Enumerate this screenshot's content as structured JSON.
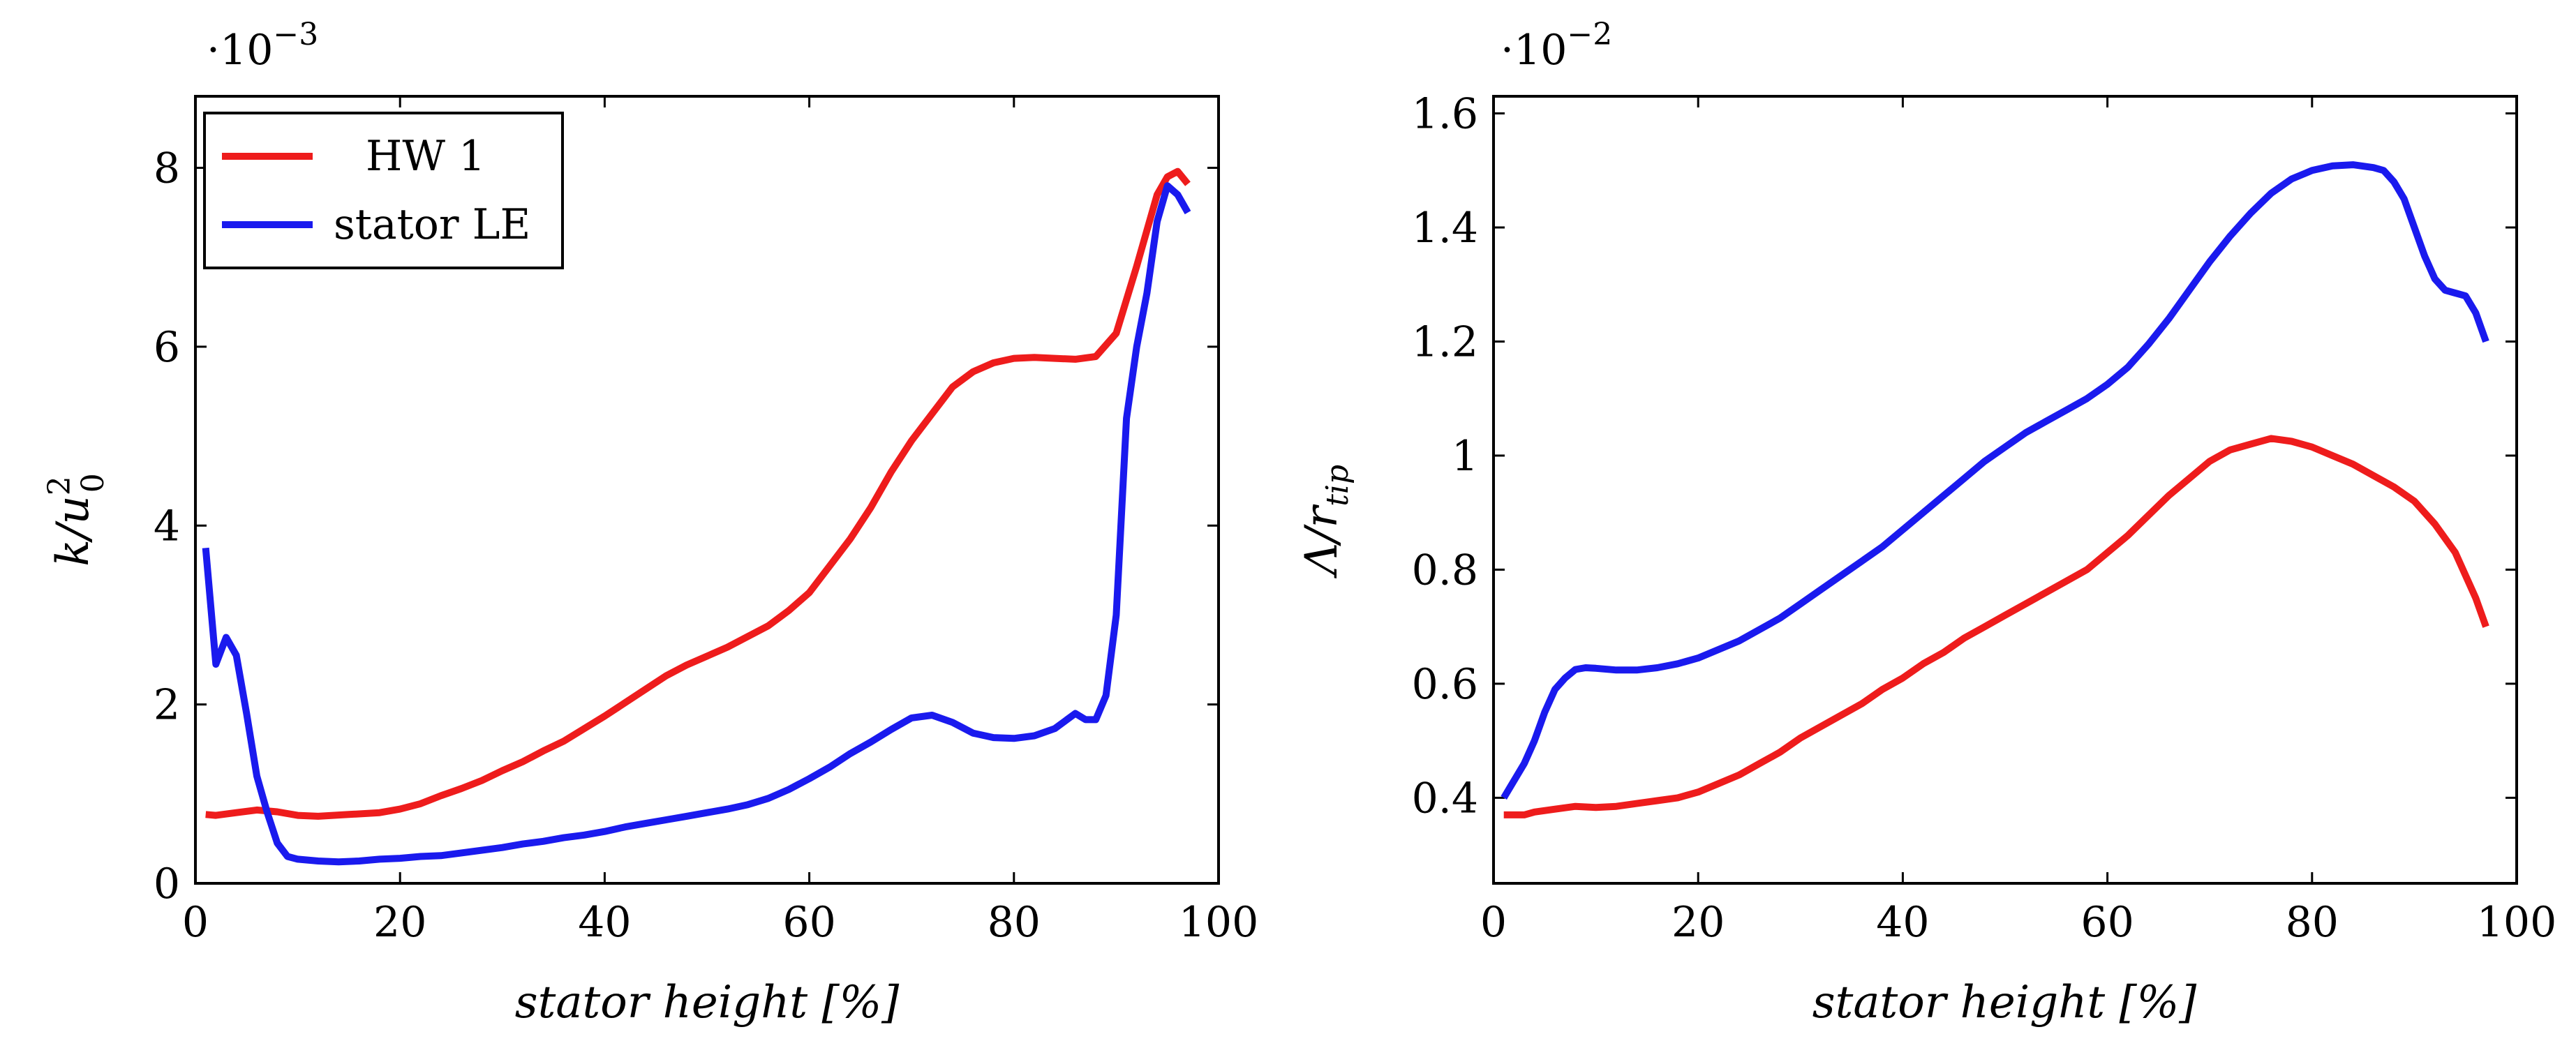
{
  "colors": {
    "hw1": "#ee1c1c",
    "stator_le": "#1a1aee",
    "axes": "#000000"
  },
  "chart_data": [
    {
      "type": "line",
      "title": "",
      "xlabel": "stator height [%]",
      "ylabel": "k/u_0^2",
      "ylabel_main": "k/u",
      "ylabel_sub": "0",
      "ylabel_sup": "2",
      "ylabel_suffix": "",
      "scale_base": "·10",
      "scale_exp": "−3",
      "xlim": [
        0,
        100
      ],
      "ylim": [
        0,
        8.8
      ],
      "xticks": [
        0,
        20,
        40,
        60,
        80,
        100
      ],
      "xtick_labels": [
        "0",
        "20",
        "40",
        "60",
        "80",
        "100"
      ],
      "yticks": [
        0,
        2,
        4,
        6,
        8
      ],
      "ytick_labels": [
        "0",
        "2",
        "4",
        "6",
        "8"
      ],
      "legend": {
        "placement": "top-left",
        "entries": [
          "HW 1",
          "stator LE"
        ]
      },
      "series": [
        {
          "name": "HW 1",
          "color": "#ee1c1c",
          "x": [
            1,
            2,
            4,
            6,
            8,
            10,
            12,
            15,
            18,
            20,
            22,
            24,
            26,
            28,
            30,
            32,
            34,
            36,
            38,
            40,
            42,
            44,
            46,
            48,
            50,
            52,
            54,
            56,
            58,
            60,
            62,
            64,
            66,
            68,
            70,
            72,
            74,
            76,
            78,
            80,
            82,
            84,
            86,
            88,
            90,
            92,
            94,
            95,
            96,
            97
          ],
          "values": [
            0.77,
            0.76,
            0.79,
            0.82,
            0.8,
            0.76,
            0.75,
            0.77,
            0.79,
            0.83,
            0.89,
            0.98,
            1.06,
            1.15,
            1.26,
            1.36,
            1.48,
            1.59,
            1.73,
            1.87,
            2.02,
            2.17,
            2.32,
            2.44,
            2.54,
            2.64,
            2.76,
            2.88,
            3.05,
            3.25,
            3.55,
            3.85,
            4.2,
            4.6,
            4.95,
            5.25,
            5.55,
            5.72,
            5.82,
            5.87,
            5.88,
            5.87,
            5.86,
            5.89,
            6.15,
            6.9,
            7.7,
            7.9,
            7.96,
            7.82
          ]
        },
        {
          "name": "stator LE",
          "color": "#1a1aee",
          "x": [
            1,
            2,
            3,
            4,
            5,
            6,
            7,
            8,
            9,
            10,
            12,
            14,
            16,
            18,
            20,
            22,
            24,
            26,
            28,
            30,
            32,
            34,
            36,
            38,
            40,
            42,
            44,
            46,
            48,
            50,
            52,
            54,
            56,
            58,
            60,
            62,
            64,
            66,
            68,
            70,
            72,
            74,
            76,
            78,
            80,
            82,
            84,
            86,
            87,
            88,
            89,
            90,
            91,
            92,
            93,
            94,
            95,
            96,
            97
          ],
          "values": [
            3.75,
            2.45,
            2.75,
            2.55,
            1.9,
            1.2,
            0.8,
            0.45,
            0.3,
            0.27,
            0.25,
            0.24,
            0.25,
            0.27,
            0.28,
            0.3,
            0.31,
            0.34,
            0.37,
            0.4,
            0.44,
            0.47,
            0.51,
            0.54,
            0.58,
            0.63,
            0.67,
            0.71,
            0.75,
            0.79,
            0.83,
            0.88,
            0.95,
            1.05,
            1.17,
            1.3,
            1.45,
            1.58,
            1.72,
            1.85,
            1.88,
            1.8,
            1.68,
            1.63,
            1.62,
            1.65,
            1.73,
            1.9,
            1.83,
            1.83,
            2.1,
            3.0,
            5.2,
            6.0,
            6.6,
            7.4,
            7.8,
            7.7,
            7.5
          ]
        }
      ]
    },
    {
      "type": "line",
      "title": "",
      "xlabel": "stator height [%]",
      "ylabel": "Λ/r_tip",
      "ylabel_main": "Λ/r",
      "ylabel_sub": "tip",
      "ylabel_sup": "",
      "ylabel_suffix": "",
      "scale_base": "·10",
      "scale_exp": "−2",
      "xlim": [
        0,
        100
      ],
      "ylim": [
        0.25,
        1.63
      ],
      "xticks": [
        0,
        20,
        40,
        60,
        80,
        100
      ],
      "xtick_labels": [
        "0",
        "20",
        "40",
        "60",
        "80",
        "100"
      ],
      "yticks": [
        0.4,
        0.6,
        0.8,
        1.0,
        1.2,
        1.4,
        1.6
      ],
      "ytick_labels": [
        "0.4",
        "0.6",
        "0.8",
        "1",
        "1.2",
        "1.4",
        "1.6"
      ],
      "legend": {
        "placement": "none",
        "entries": []
      },
      "series": [
        {
          "name": "HW 1",
          "color": "#ee1c1c",
          "x": [
            1,
            2,
            3,
            4,
            6,
            8,
            10,
            12,
            14,
            16,
            18,
            20,
            22,
            24,
            26,
            28,
            30,
            32,
            34,
            36,
            38,
            40,
            42,
            44,
            46,
            48,
            50,
            52,
            54,
            56,
            58,
            60,
            62,
            64,
            66,
            68,
            70,
            72,
            74,
            76,
            78,
            80,
            82,
            84,
            86,
            88,
            90,
            92,
            94,
            96,
            97
          ],
          "values": [
            0.37,
            0.37,
            0.37,
            0.375,
            0.38,
            0.385,
            0.383,
            0.385,
            0.39,
            0.395,
            0.4,
            0.41,
            0.425,
            0.44,
            0.46,
            0.48,
            0.505,
            0.525,
            0.545,
            0.565,
            0.59,
            0.61,
            0.635,
            0.655,
            0.68,
            0.7,
            0.72,
            0.74,
            0.76,
            0.78,
            0.8,
            0.83,
            0.86,
            0.895,
            0.93,
            0.96,
            0.99,
            1.01,
            1.02,
            1.03,
            1.025,
            1.015,
            1.0,
            0.985,
            0.965,
            0.945,
            0.92,
            0.88,
            0.83,
            0.75,
            0.7
          ]
        },
        {
          "name": "stator LE",
          "color": "#1a1aee",
          "x": [
            1,
            2,
            3,
            4,
            5,
            6,
            7,
            8,
            9,
            10,
            12,
            14,
            16,
            18,
            20,
            22,
            24,
            26,
            28,
            30,
            32,
            34,
            36,
            38,
            40,
            42,
            44,
            46,
            48,
            50,
            52,
            54,
            56,
            58,
            60,
            62,
            64,
            66,
            68,
            70,
            72,
            74,
            76,
            78,
            80,
            82,
            84,
            86,
            87,
            88,
            89,
            90,
            91,
            92,
            93,
            94,
            95,
            96,
            97
          ],
          "values": [
            0.4,
            0.43,
            0.46,
            0.5,
            0.55,
            0.59,
            0.61,
            0.625,
            0.628,
            0.627,
            0.624,
            0.624,
            0.628,
            0.635,
            0.645,
            0.66,
            0.675,
            0.695,
            0.715,
            0.74,
            0.765,
            0.79,
            0.815,
            0.84,
            0.87,
            0.9,
            0.93,
            0.96,
            0.99,
            1.015,
            1.04,
            1.06,
            1.08,
            1.1,
            1.125,
            1.155,
            1.195,
            1.24,
            1.29,
            1.34,
            1.385,
            1.425,
            1.46,
            1.485,
            1.5,
            1.508,
            1.51,
            1.505,
            1.5,
            1.48,
            1.45,
            1.4,
            1.35,
            1.31,
            1.29,
            1.285,
            1.28,
            1.25,
            1.2
          ]
        }
      ]
    }
  ]
}
